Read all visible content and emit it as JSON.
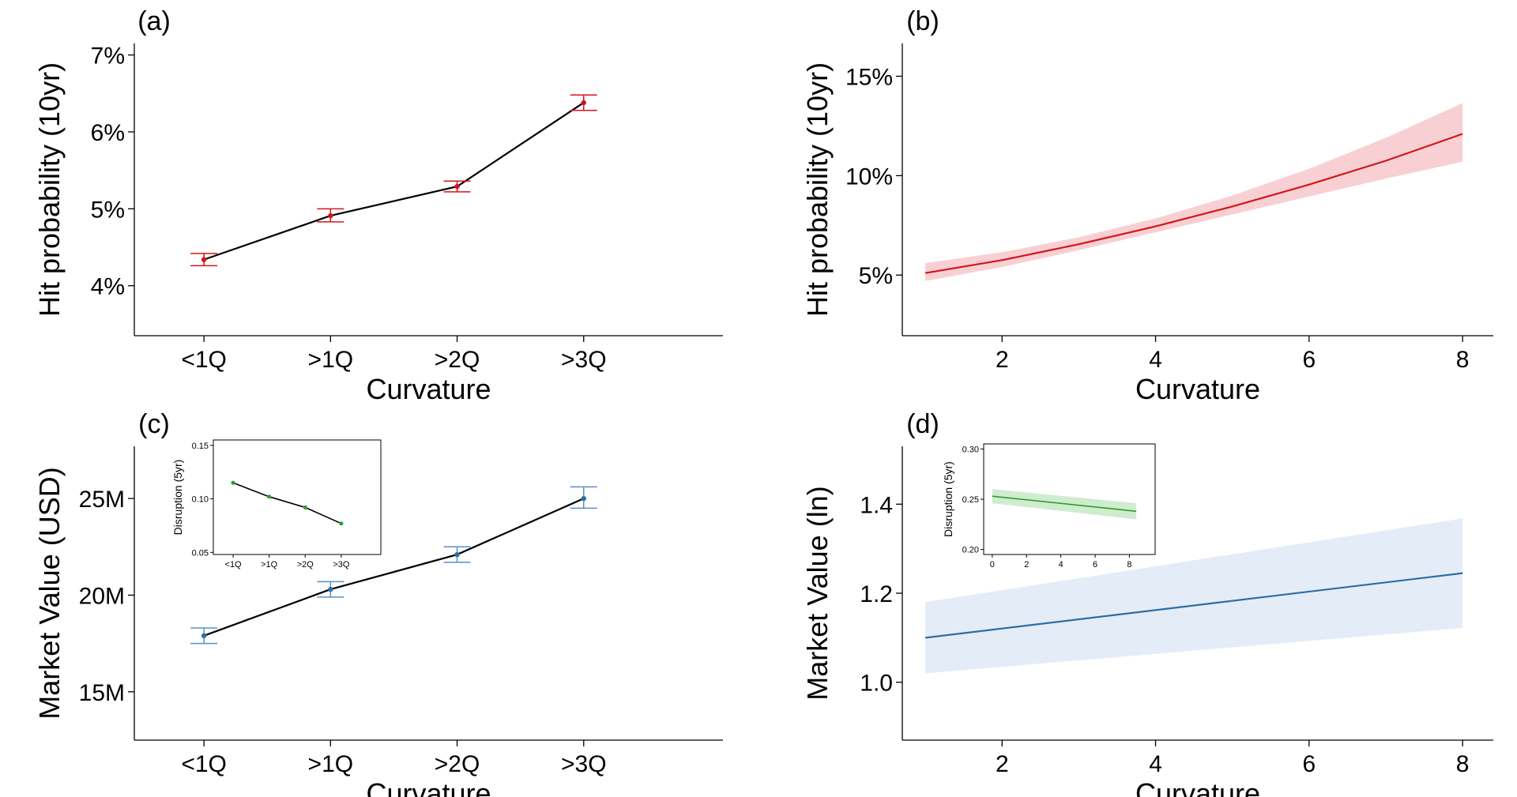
{
  "chart_data": [
    {
      "panel_label": "(a)",
      "type": "line",
      "categories": [
        "<1Q",
        ">1Q",
        ">2Q",
        ">3Q"
      ],
      "series": [
        {
          "values": [
            0.0434,
            0.0491,
            0.0529,
            0.0638
          ],
          "ci_low": [
            0.0426,
            0.0483,
            0.0522,
            0.0628
          ],
          "ci_high": [
            0.0442,
            0.05,
            0.0536,
            0.0648
          ]
        }
      ],
      "xlabel": "Curvature",
      "ylabel": "Hit probability (10yr)",
      "ylim": [
        0.0335,
        0.0715
      ],
      "yticks": [
        0.04,
        0.05,
        0.06,
        0.07
      ],
      "ytick_labels": [
        "4%",
        "5%",
        "6%",
        "7%"
      ],
      "colors": {
        "line": "#000000",
        "marker": "#d4141c",
        "errorbar": "#d4141c"
      }
    },
    {
      "panel_label": "(b)",
      "type": "area",
      "x": [
        1,
        2,
        3,
        4,
        5,
        6,
        7,
        8
      ],
      "series": [
        {
          "values": [
            0.051,
            0.0575,
            0.0655,
            0.0745,
            0.0845,
            0.0955,
            0.1075,
            0.121
          ],
          "band_low": [
            0.047,
            0.054,
            0.0625,
            0.0715,
            0.0805,
            0.0895,
            0.0985,
            0.107
          ],
          "band_high": [
            0.056,
            0.0615,
            0.069,
            0.0785,
            0.09,
            0.1035,
            0.119,
            0.1365
          ]
        }
      ],
      "xlabel": "Curvature",
      "ylabel": "Hit probability (10yr)",
      "xlim": [
        0.7,
        8.4
      ],
      "xticks": [
        2,
        4,
        6,
        8
      ],
      "ylim": [
        0.0195,
        0.1665
      ],
      "yticks": [
        0.05,
        0.1,
        0.15
      ],
      "ytick_labels": [
        "5%",
        "10%",
        "15%"
      ],
      "colors": {
        "line": "#d4141c",
        "band": "#f8d0d3"
      }
    },
    {
      "panel_label": "(c)",
      "type": "line",
      "categories": [
        "<1Q",
        ">1Q",
        ">2Q",
        ">3Q"
      ],
      "series": [
        {
          "values": [
            17.9,
            20.3,
            22.1,
            25.0
          ],
          "ci_low": [
            17.5,
            19.9,
            21.7,
            24.5
          ],
          "ci_high": [
            18.3,
            20.7,
            22.5,
            25.6
          ]
        }
      ],
      "xlabel": "Curvature",
      "ylabel": "Market Value (USD)",
      "ylim": [
        12.5,
        27.7
      ],
      "yticks": [
        15,
        20,
        25
      ],
      "ytick_labels": [
        "15M",
        "20M",
        "25M"
      ],
      "colors": {
        "line": "#000000",
        "marker": "#2e6da4",
        "errorbar": "#5b8fc2"
      },
      "inset": {
        "type": "line",
        "categories": [
          "<1Q",
          ">1Q",
          ">2Q",
          ">3Q"
        ],
        "values": [
          0.115,
          0.102,
          0.092,
          0.077
        ],
        "ylabel": "Disruption (5yr)",
        "ylim": [
          0.048,
          0.155
        ],
        "yticks": [
          0.05,
          0.1,
          0.15
        ],
        "ytick_labels": [
          "0.05",
          "0.10",
          "0.15"
        ],
        "colors": {
          "line": "#000000",
          "marker": "#2ca02c"
        }
      }
    },
    {
      "panel_label": "(d)",
      "type": "area",
      "x": [
        1,
        8
      ],
      "series": [
        {
          "values": [
            1.1,
            1.245
          ],
          "band_low": [
            1.02,
            1.122
          ],
          "band_high": [
            1.18,
            1.368
          ]
        }
      ],
      "xlabel": "Curvature",
      "ylabel": "Market Value (ln)",
      "xlim": [
        0.7,
        8.4
      ],
      "xticks": [
        2,
        4,
        6,
        8
      ],
      "ylim": [
        0.87,
        1.53
      ],
      "yticks": [
        1.0,
        1.2,
        1.4
      ],
      "ytick_labels": [
        "1.0",
        "1.2",
        "1.4"
      ],
      "colors": {
        "line": "#2e6da4",
        "band": "#e4edf7"
      },
      "inset": {
        "type": "area",
        "x": [
          0,
          8.4
        ],
        "values": [
          0.253,
          0.238
        ],
        "band_low": [
          0.246,
          0.23
        ],
        "band_high": [
          0.26,
          0.246
        ],
        "ylabel": "Disruption (5yr)",
        "xlim": [
          -0.5,
          9.5
        ],
        "xticks": [
          0,
          2,
          4,
          6,
          8
        ],
        "ylim": [
          0.195,
          0.305
        ],
        "yticks": [
          0.2,
          0.25,
          0.3
        ],
        "ytick_labels": [
          "0.20",
          "0.25",
          "0.30"
        ],
        "colors": {
          "line": "#2ca02c",
          "band": "#cfeccf"
        }
      }
    }
  ]
}
